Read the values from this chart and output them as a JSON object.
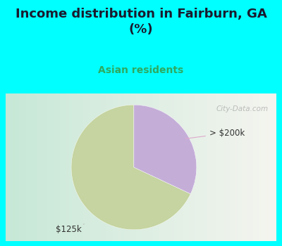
{
  "title": "Income distribution in Fairburn, GA\n(%)",
  "subtitle": "Asian residents",
  "title_color": "#1a1a2e",
  "subtitle_color": "#2eaa60",
  "background_color": "#00ffff",
  "chart_bg_gradient_left": "#c8e8d8",
  "chart_bg_gradient_right": "#f0f0e8",
  "slices": [
    {
      "label": "$125k",
      "value": 68,
      "color": "#c5d4a0"
    },
    {
      "label": "> $200k",
      "value": 32,
      "color": "#c4aed8"
    }
  ],
  "start_angle": 90,
  "watermark": "City-Data.com"
}
